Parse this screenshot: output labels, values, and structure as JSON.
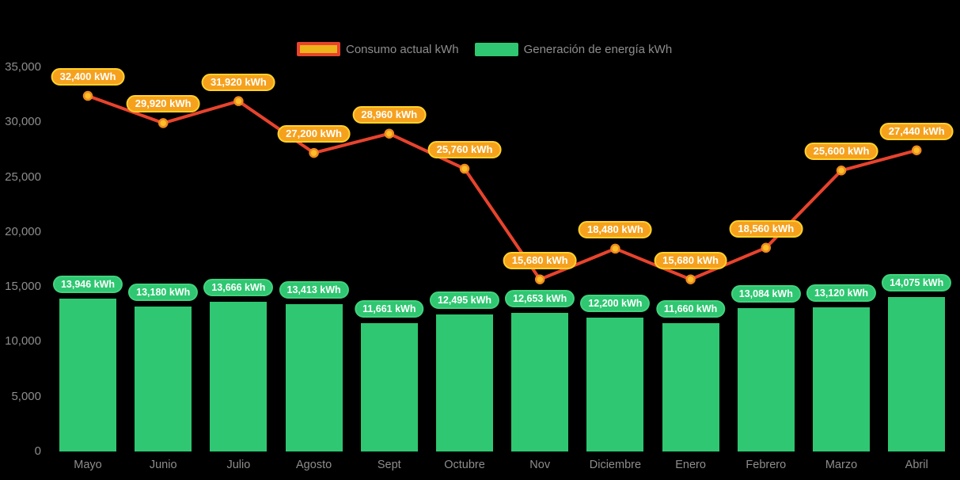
{
  "legend": {
    "position": "top-center",
    "items": [
      {
        "label": "Consumo actual kWh",
        "swatch_fill": "#eeb31b",
        "swatch_border": "#e8432d"
      },
      {
        "label": "Generación de energía kWh",
        "swatch_fill": "#2fc771",
        "swatch_border": "#2fc771"
      }
    ]
  },
  "colors": {
    "background": "#000000",
    "axis_text": "#8d8d8d",
    "line": "#e8432d",
    "marker_fill": "#fcbf2a",
    "marker_stroke": "#ef8a1d",
    "bar": "#2fc771",
    "bar_pill_bg": "#2fc771",
    "point_pill_bg": "#f6a11d",
    "point_pill_border": "#ffd22b",
    "pill_text": "#ffffff"
  },
  "chart_data": {
    "type": "bar",
    "title": "",
    "xlabel": "",
    "ylabel": "",
    "categories": [
      "Mayo",
      "Junio",
      "Julio",
      "Agosto",
      "Sept",
      "Octubre",
      "Nov",
      "Diciembre",
      "Enero",
      "Febrero",
      "Marzo",
      "Abril"
    ],
    "series": [
      {
        "name": "Consumo actual kWh",
        "type": "line",
        "color": "#e8432d",
        "values": [
          32400,
          29920,
          31920,
          27200,
          28960,
          25760,
          15680,
          18480,
          15680,
          18560,
          25600,
          27440
        ],
        "labels": [
          "32,400 kWh",
          "29,920 kWh",
          "31,920 kWh",
          "27,200 kWh",
          "28,960 kWh",
          "25,760 kWh",
          "15,680 kWh",
          "18,480 kWh",
          "15,680 kWh",
          "18,560 kWh",
          "25,600 kWh",
          "27,440 kWh"
        ]
      },
      {
        "name": "Generación de energía kWh",
        "type": "bar",
        "color": "#2fc771",
        "values": [
          13946,
          13180,
          13666,
          13413,
          11661,
          12495,
          12653,
          12200,
          11660,
          13084,
          13120,
          14075
        ],
        "labels": [
          "13,946 kWh",
          "13,180 kWh",
          "13,666 kWh",
          "13,413 kWh",
          "11,661 kWh",
          "12,495 kWh",
          "12,653 kWh",
          "12,200 kWh",
          "11,660 kWh",
          "13,084 kWh",
          "13,120 kWh",
          "14,075 kWh"
        ]
      }
    ],
    "ylim": [
      0,
      35000
    ],
    "ytick_step": 5000,
    "ytick_labels": [
      "0",
      "5,000",
      "10,000",
      "15,000",
      "20,000",
      "25,000",
      "30,000",
      "35,000"
    ],
    "grid": false,
    "legend_position": "top-center"
  }
}
